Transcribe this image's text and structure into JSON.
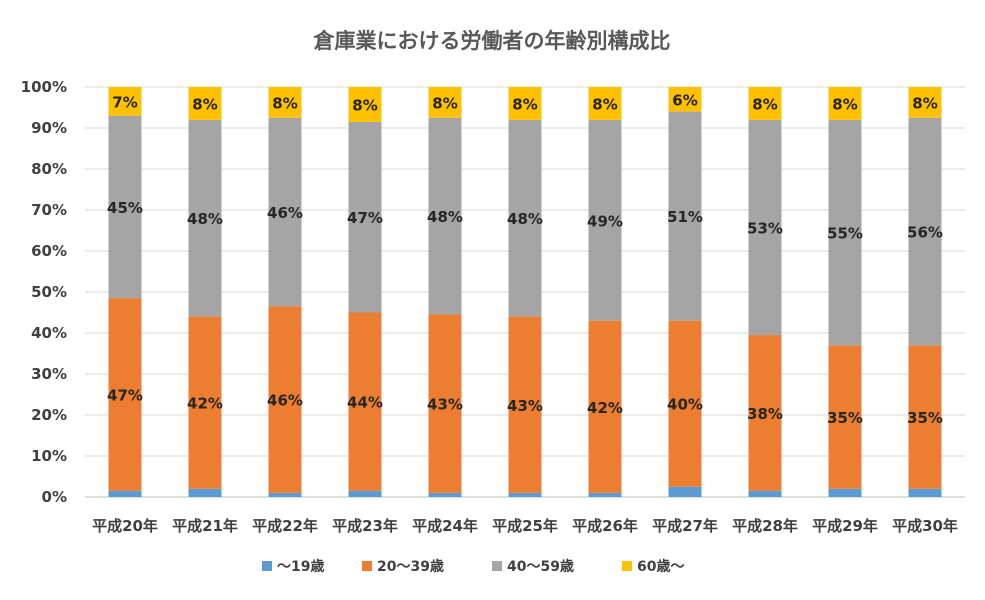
{
  "chart_data": {
    "type": "bar",
    "stacked": true,
    "percent_stacked": true,
    "title": "倉庫業における労働者の年齢別構成比",
    "categories": [
      "平成20年",
      "平成21年",
      "平成22年",
      "平成23年",
      "平成24年",
      "平成25年",
      "平成26年",
      "平成27年",
      "平成28年",
      "平成29年",
      "平成30年"
    ],
    "y_ticks": [
      "0%",
      "10%",
      "20%",
      "30%",
      "40%",
      "50%",
      "60%",
      "70%",
      "80%",
      "90%",
      "100%"
    ],
    "ylim": [
      0,
      100
    ],
    "grid": true,
    "legend_position": "bottom",
    "series": [
      {
        "name": "～19歳",
        "color": "#5B9BD5",
        "values": [
          1.5,
          2,
          1,
          1.5,
          1,
          1,
          1,
          2.5,
          1.5,
          2,
          2
        ],
        "labels": [
          "",
          "",
          "",
          "",
          "",
          "",
          "",
          "",
          "",
          "",
          ""
        ]
      },
      {
        "name": "20～39歳",
        "color": "#ED7D31",
        "values": [
          47,
          42,
          45.5,
          43.5,
          43.5,
          43,
          42,
          40.5,
          38,
          35,
          35
        ],
        "labels": [
          "47%",
          "42%",
          "46%",
          "44%",
          "43%",
          "43%",
          "42%",
          "40%",
          "38%",
          "35%",
          "35%"
        ]
      },
      {
        "name": "40～59歳",
        "color": "#A5A5A5",
        "values": [
          44.5,
          48,
          46,
          46.5,
          48,
          48,
          49,
          51,
          52.5,
          55,
          55.5
        ],
        "labels": [
          "45%",
          "48%",
          "46%",
          "47%",
          "48%",
          "48%",
          "49%",
          "51%",
          "53%",
          "55%",
          "56%"
        ]
      },
      {
        "name": "60歳～",
        "color": "#FFC000",
        "values": [
          7,
          8,
          7.5,
          8.5,
          7.5,
          8,
          8,
          6,
          8,
          8,
          7.5
        ],
        "labels": [
          "7%",
          "8%",
          "8%",
          "8%",
          "8%",
          "8%",
          "8%",
          "6%",
          "8%",
          "8%",
          "8%"
        ]
      }
    ]
  }
}
